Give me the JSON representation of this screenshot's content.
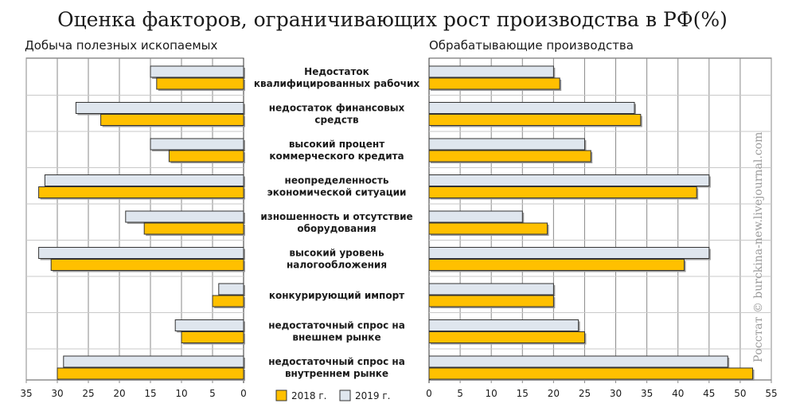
{
  "title": "Оценка факторов, ограничивающих рост производства в РФ(%)",
  "watermark": "Росстат © burckina-new.livejournal.com",
  "legend": [
    {
      "label": "2018 г.",
      "color": "#ffc000"
    },
    {
      "label": "2019 г.",
      "color": "#dfe6ee"
    }
  ],
  "chart_data": [
    {
      "type": "bar",
      "orientation": "horizontal",
      "direction": "right-to-left",
      "title": "Добыча полезных ископаемых",
      "xlim": [
        0,
        35
      ],
      "ticks": [
        35,
        30,
        25,
        20,
        15,
        10,
        5,
        0
      ],
      "categories": [
        "Недостаток квалифицированных рабочих",
        "недостаток финансовых средств",
        "высокий процент коммерческого кредита",
        "неопределенность экономической ситуации",
        "изношенность и отсутствие оборудования",
        "высокий уровень налогообложения",
        "конкурирующий импорт",
        "недостаточный спрос на внешнем рынке",
        "недостаточный спрос на внутреннем рынке"
      ],
      "series": [
        {
          "name": "2019 г.",
          "values": [
            15,
            27,
            15,
            32,
            19,
            33,
            4,
            11,
            29
          ]
        },
        {
          "name": "2018 г.",
          "values": [
            14,
            23,
            12,
            33,
            16,
            31,
            5,
            10,
            30
          ]
        }
      ]
    },
    {
      "type": "bar",
      "orientation": "horizontal",
      "direction": "left-to-right",
      "title": "Обрабатывающие производства",
      "xlim": [
        0,
        55
      ],
      "ticks": [
        0,
        5,
        10,
        15,
        20,
        25,
        30,
        35,
        40,
        45,
        50,
        55
      ],
      "categories": [
        "Недостаток квалифицированных рабочих",
        "недостаток финансовых средств",
        "высокий процент коммерческого кредита",
        "неопределенность экономической ситуации",
        "изношенность и отсутствие оборудования",
        "высокий уровень налогообложения",
        "конкурирующий импорт",
        "недостаточный спрос на внешнем рынке",
        "недостаточный спрос на внутреннем рынке"
      ],
      "series": [
        {
          "name": "2019 г.",
          "values": [
            20,
            33,
            25,
            45,
            15,
            45,
            20,
            24,
            48
          ]
        },
        {
          "name": "2018 г.",
          "values": [
            21,
            34,
            26,
            43,
            19,
            41,
            20,
            25,
            52
          ]
        }
      ]
    }
  ],
  "category_lines": [
    [
      "Недостаток",
      "квалифицированных рабочих"
    ],
    [
      "недостаток финансовых",
      "средств"
    ],
    [
      "высокий процент",
      "коммерческого кредита"
    ],
    [
      "неопределенность",
      "экономической ситуации"
    ],
    [
      "изношенность и отсутствие",
      "оборудования"
    ],
    [
      "высокий уровень",
      "налогообложения"
    ],
    [
      "конкурирующий импорт"
    ],
    [
      "недостаточный спрос на",
      "внешнем рынке"
    ],
    [
      "недостаточный спрос на",
      "внутреннем рынке"
    ]
  ]
}
